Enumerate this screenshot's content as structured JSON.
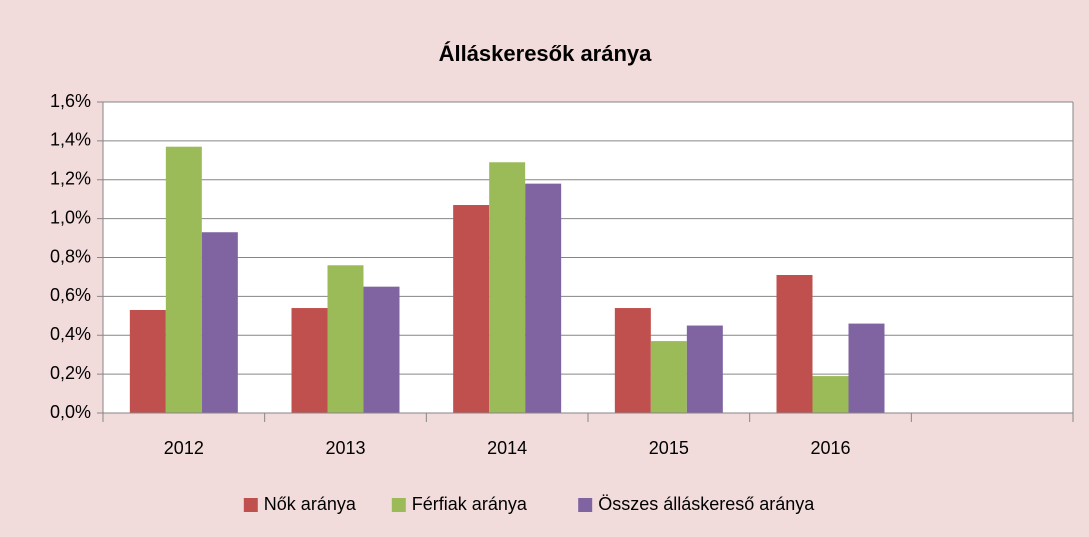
{
  "chart_data": {
    "type": "bar",
    "title": "Álláskeresők aránya",
    "categories": [
      "2012",
      "2013",
      "2014",
      "2015",
      "2016",
      null
    ],
    "series": [
      {
        "name": "Nők aránya",
        "color": "#c0504d",
        "values": [
          0.53,
          0.54,
          1.07,
          0.54,
          0.71,
          null
        ]
      },
      {
        "name": "Férfiak aránya",
        "color": "#9bbb59",
        "values": [
          1.37,
          0.76,
          1.29,
          0.37,
          0.19,
          null
        ]
      },
      {
        "name": "Összes álláskereső aránya",
        "color": "#8064a2",
        "values": [
          0.93,
          0.65,
          1.18,
          0.45,
          0.46,
          null
        ]
      }
    ],
    "ylim": [
      0,
      1.6
    ],
    "yticks": [
      {
        "value": 0,
        "label": "0,0%"
      },
      {
        "value": 0.2,
        "label": "0,2%"
      },
      {
        "value": 0.4,
        "label": "0,4%"
      },
      {
        "value": 0.6,
        "label": "0,6%"
      },
      {
        "value": 0.8,
        "label": "0,8%"
      },
      {
        "value": 1.0,
        "label": "1,0%"
      },
      {
        "value": 1.2,
        "label": "1,2%"
      },
      {
        "value": 1.4,
        "label": "1,4%"
      },
      {
        "value": 1.6,
        "label": "1,6%"
      }
    ],
    "grid": true,
    "legend": "bottom"
  }
}
